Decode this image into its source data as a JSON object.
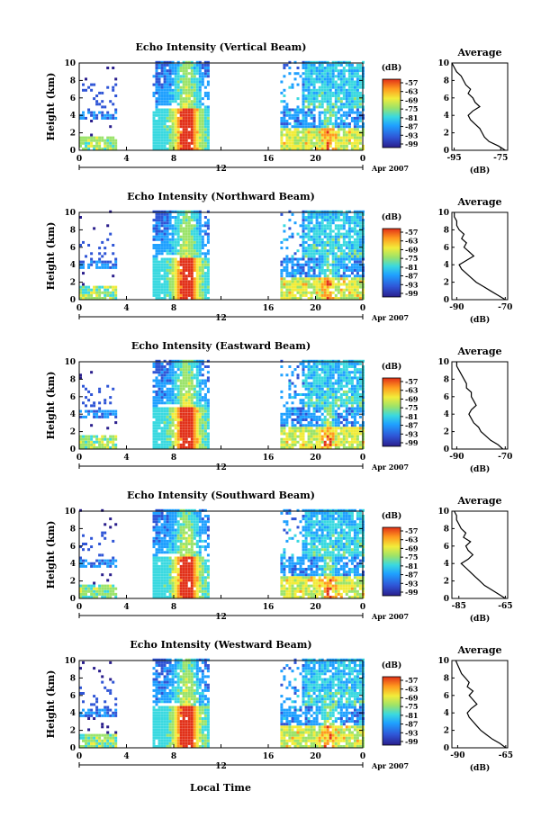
{
  "figure": {
    "xlabel": "Local Time",
    "time_axis_label": "12",
    "date_label": "Apr 2007",
    "avg_xlabel": "(dB)",
    "cbar_unit": "(dB)",
    "avg_title": "Average"
  },
  "chart_data": [
    {
      "type": "heatmap",
      "title": "Echo Intensity (Vertical Beam)",
      "ylabel": "Height (km)",
      "xticks": [
        "0",
        "4",
        "8",
        "12",
        "16",
        "20",
        "0"
      ],
      "yticks": [
        "0",
        "2",
        "4",
        "6",
        "8",
        "10"
      ],
      "xlim": [
        0,
        24
      ],
      "ylim": [
        0,
        10
      ],
      "colorbar_ticks": [
        "-57",
        "-63",
        "-69",
        "-75",
        "-81",
        "-87",
        "-93",
        "-99"
      ],
      "data_gaps_hours": [
        [
          3,
          6
        ],
        [
          11,
          17
        ]
      ],
      "average_profile": {
        "xticks": [
          "-95",
          "-75"
        ],
        "xlim": [
          -96,
          -72
        ],
        "heights_km": [
          0,
          0.5,
          1,
          1.5,
          2,
          2.5,
          3,
          3.5,
          4,
          4.5,
          5,
          5.5,
          6,
          6.5,
          7,
          7.5,
          8,
          8.5,
          9,
          9.5,
          10
        ],
        "values_db": [
          -73,
          -76,
          -80,
          -82,
          -83,
          -84,
          -86,
          -88,
          -89,
          -87,
          -84,
          -86,
          -87,
          -89,
          -88,
          -90,
          -91,
          -92,
          -94,
          -95,
          -96
        ]
      }
    },
    {
      "type": "heatmap",
      "title": "Echo Intensity (Northward Beam)",
      "ylabel": "Height (km)",
      "xticks": [
        "0",
        "4",
        "8",
        "12",
        "16",
        "20",
        "0"
      ],
      "yticks": [
        "0",
        "2",
        "4",
        "6",
        "8",
        "10"
      ],
      "xlim": [
        0,
        24
      ],
      "ylim": [
        0,
        10
      ],
      "colorbar_ticks": [
        "-57",
        "-63",
        "-69",
        "-75",
        "-81",
        "-87",
        "-93",
        "-99"
      ],
      "data_gaps_hours": [
        [
          3,
          6
        ],
        [
          11,
          17
        ]
      ],
      "average_profile": {
        "xticks": [
          "-90",
          "-70"
        ],
        "xlim": [
          -92,
          -69
        ],
        "heights_km": [
          0,
          0.5,
          1,
          1.5,
          2,
          2.5,
          3,
          3.5,
          4,
          4.5,
          5,
          5.5,
          6,
          6.5,
          7,
          7.5,
          8,
          8.5,
          9,
          9.5,
          10
        ],
        "values_db": [
          -70,
          -73,
          -76,
          -79,
          -82,
          -84,
          -86,
          -88,
          -89,
          -86,
          -83,
          -85,
          -87,
          -86,
          -88,
          -87,
          -89,
          -90,
          -90,
          -91,
          -91
        ]
      }
    },
    {
      "type": "heatmap",
      "title": "Echo Intensity (Eastward Beam)",
      "ylabel": "Height (km)",
      "xticks": [
        "0",
        "4",
        "8",
        "12",
        "16",
        "20",
        "0"
      ],
      "yticks": [
        "0",
        "2",
        "4",
        "6",
        "8",
        "10"
      ],
      "xlim": [
        0,
        24
      ],
      "ylim": [
        0,
        10
      ],
      "colorbar_ticks": [
        "-57",
        "-63",
        "-69",
        "-75",
        "-81",
        "-87",
        "-93",
        "-99"
      ],
      "data_gaps_hours": [
        [
          3,
          6
        ],
        [
          11,
          17
        ]
      ],
      "average_profile": {
        "xticks": [
          "-90",
          "-70"
        ],
        "xlim": [
          -92,
          -69
        ],
        "heights_km": [
          0,
          0.5,
          1,
          1.5,
          2,
          2.5,
          3,
          3.5,
          4,
          4.5,
          5,
          5.5,
          6,
          6.5,
          7,
          7.5,
          8,
          8.5,
          9,
          9.5,
          10
        ],
        "values_db": [
          -71,
          -73,
          -76,
          -78,
          -80,
          -81,
          -83,
          -84,
          -85,
          -84,
          -82,
          -83,
          -84,
          -84,
          -86,
          -86,
          -87,
          -88,
          -89,
          -90,
          -90
        ]
      }
    },
    {
      "type": "heatmap",
      "title": "Echo Intensity (Southward Beam)",
      "ylabel": "Height (km)",
      "xticks": [
        "0",
        "4",
        "8",
        "12",
        "16",
        "20",
        "0"
      ],
      "yticks": [
        "0",
        "2",
        "4",
        "6",
        "8",
        "10"
      ],
      "xlim": [
        0,
        24
      ],
      "ylim": [
        0,
        10
      ],
      "colorbar_ticks": [
        "-57",
        "-63",
        "-69",
        "-75",
        "-81",
        "-87",
        "-93",
        "-99"
      ],
      "data_gaps_hours": [
        [
          3,
          6
        ],
        [
          11,
          17
        ]
      ],
      "average_profile": {
        "xticks": [
          "-85",
          "-65"
        ],
        "xlim": [
          -88,
          -64
        ],
        "heights_km": [
          0,
          0.5,
          1,
          1.5,
          2,
          2.5,
          3,
          3.5,
          4,
          4.5,
          5,
          5.5,
          6,
          6.5,
          7,
          7.5,
          8,
          8.5,
          9,
          9.5,
          10
        ],
        "values_db": [
          -65,
          -68,
          -71,
          -74,
          -76,
          -78,
          -80,
          -82,
          -84,
          -81,
          -79,
          -81,
          -82,
          -80,
          -83,
          -82,
          -84,
          -85,
          -86,
          -86,
          -87
        ]
      }
    },
    {
      "type": "heatmap",
      "title": "Echo Intensity (Westward Beam)",
      "ylabel": "Height (km)",
      "xticks": [
        "0",
        "4",
        "8",
        "12",
        "16",
        "20",
        "0"
      ],
      "yticks": [
        "0",
        "2",
        "4",
        "6",
        "8",
        "10"
      ],
      "xlim": [
        0,
        24
      ],
      "ylim": [
        0,
        10
      ],
      "colorbar_ticks": [
        "-57",
        "-63",
        "-69",
        "-75",
        "-81",
        "-87",
        "-93",
        "-99"
      ],
      "data_gaps_hours": [
        [
          3,
          6
        ],
        [
          11,
          17
        ]
      ],
      "average_profile": {
        "xticks": [
          "-90",
          "-65"
        ],
        "xlim": [
          -93,
          -64
        ],
        "heights_km": [
          0,
          0.5,
          1,
          1.5,
          2,
          2.5,
          3,
          3.5,
          4,
          4.5,
          5,
          5.5,
          6,
          6.5,
          7,
          7.5,
          8,
          8.5,
          9,
          9.5,
          10
        ],
        "values_db": [
          -65,
          -68,
          -72,
          -75,
          -78,
          -80,
          -82,
          -84,
          -85,
          -83,
          -80,
          -82,
          -84,
          -82,
          -85,
          -84,
          -86,
          -88,
          -89,
          -90,
          -91
        ]
      }
    }
  ]
}
